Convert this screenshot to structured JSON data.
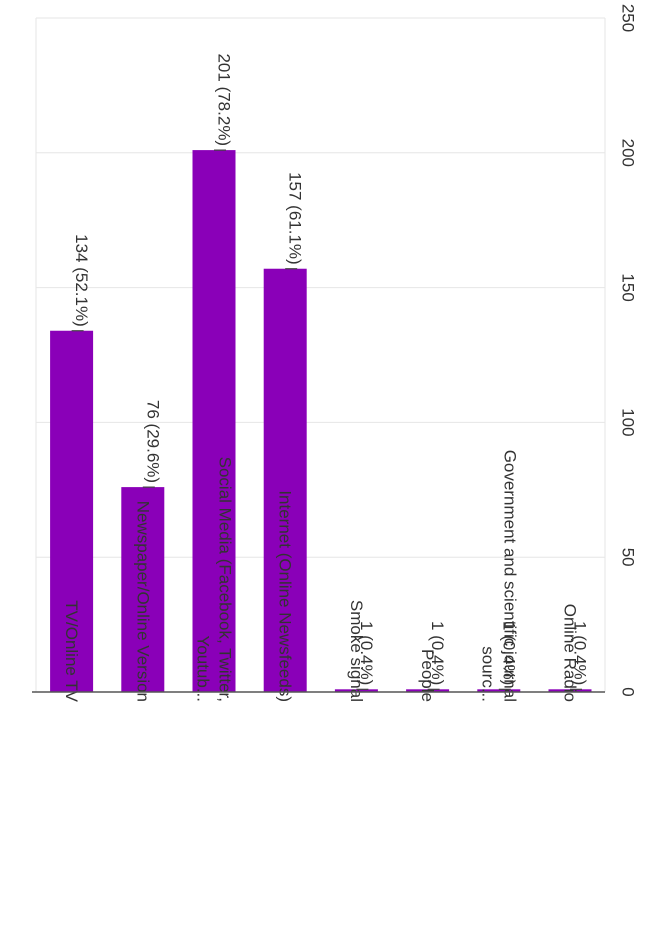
{
  "chart_data": {
    "type": "bar",
    "orientation": "rotated-90-clockwise",
    "categories": [
      [
        "TV/Online TV"
      ],
      [
        "Newspaper/Online Version"
      ],
      [
        "Social Media (Facebook, Twitter,",
        "Youtub..."
      ],
      [
        "Internet (Online Newsfeeds)"
      ],
      [
        "Smoke signal"
      ],
      [
        "People"
      ],
      [
        "Government and scientific journal",
        "sourc..."
      ],
      [
        "Online Radio"
      ]
    ],
    "values": [
      134,
      76,
      201,
      157,
      1,
      1,
      1,
      1
    ],
    "data_labels": [
      "134 (52.1%)",
      "76 (29.6%)",
      "201 (78.2%)",
      "157 (61.1%)",
      "1 (0.4%)",
      "1 (0.4%)",
      "1 (0.4%)",
      "1 (0.4%)"
    ],
    "ticks": [
      0,
      50,
      100,
      150,
      200,
      250
    ],
    "ylim": [
      0,
      250
    ],
    "grid": true,
    "bar_color": "#8a00b8",
    "title": "",
    "xlabel": "",
    "ylabel": ""
  }
}
